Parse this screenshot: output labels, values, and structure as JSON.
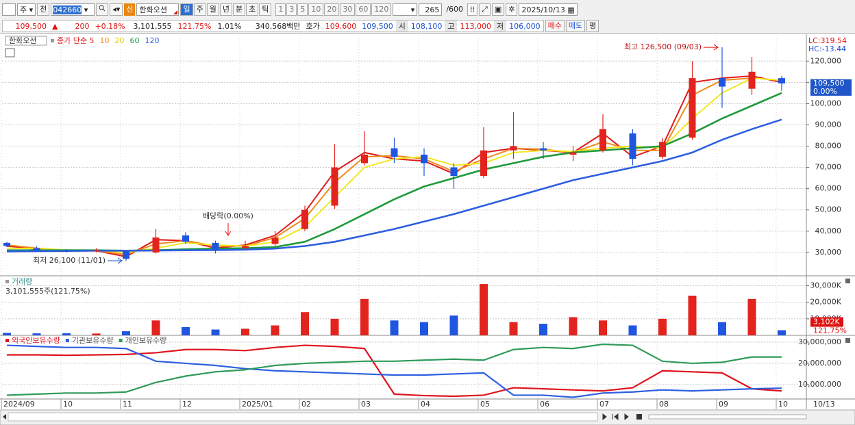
{
  "toolbar": {
    "market": "주",
    "prev": "전",
    "code": "042660",
    "badge": "신",
    "name": "한화오션",
    "periods": [
      "일",
      "주",
      "월",
      "년",
      "분",
      "초",
      "틱"
    ],
    "intervals": [
      "1",
      "3",
      "5",
      "10",
      "20",
      "30",
      "60",
      "120"
    ],
    "count": "265",
    "max": "/600",
    "date": "2025/10/13"
  },
  "quote": {
    "price": "109,500",
    "arrow": "▲",
    "change": "200",
    "change_rate": "+0.18%",
    "volume": "3,101,555",
    "volume_rate": "121.75%",
    "turnover": "1.01%",
    "amount": "340,568백만",
    "ask_label": "호가",
    "ask": "109,600",
    "bid": "109,500",
    "open_label": "시",
    "open": "108,100",
    "high_label": "고",
    "high": "113,000",
    "low_label": "저",
    "low": "106,000",
    "buy": "매수",
    "sell": "매도",
    "eval": "평"
  },
  "chart_data": [
    {
      "type": "candlestick",
      "title": "한화오션",
      "categories": [
        "2024/09",
        null,
        "10",
        null,
        "11",
        null,
        "12",
        null,
        "2025/01",
        null,
        "02",
        null,
        "03",
        null,
        "04",
        null,
        "05",
        null,
        "06",
        null,
        "07",
        null,
        "08",
        null,
        "09",
        null,
        "10"
      ],
      "open": [
        34500,
        32000,
        31000,
        30500,
        30500,
        30000,
        38000,
        34500,
        32000,
        34000,
        41000,
        52000,
        72000,
        79000,
        76000,
        70000,
        66000,
        78000,
        79000,
        76000,
        78000,
        86000,
        75000,
        84000,
        112000,
        107000,
        112000
      ],
      "high": [
        35000,
        33000,
        31500,
        32000,
        31000,
        41000,
        39500,
        35500,
        35500,
        40000,
        52000,
        81000,
        87000,
        84000,
        79000,
        72000,
        89000,
        96000,
        82000,
        80000,
        95000,
        88000,
        84000,
        120000,
        126500,
        122000,
        113000
      ],
      "low": [
        32500,
        30500,
        30000,
        30000,
        26100,
        29500,
        34000,
        29500,
        31500,
        33000,
        40000,
        50500,
        71000,
        72000,
        66000,
        60000,
        65000,
        74000,
        74000,
        73000,
        77000,
        71000,
        74000,
        83000,
        98000,
        104000,
        106000
      ],
      "close": [
        33000,
        31000,
        30500,
        31000,
        27000,
        37000,
        35000,
        31500,
        33000,
        37000,
        50000,
        70000,
        76000,
        75000,
        72000,
        66000,
        78000,
        80000,
        78000,
        77000,
        88000,
        74000,
        82000,
        112000,
        108000,
        115000,
        109500
      ],
      "up_color": "#e3231d",
      "down_color": "#1f55e0",
      "series": [
        {
          "name": "종가 단순 5",
          "color": "#e01b1b",
          "values": [
            33000,
            31500,
            30800,
            30800,
            28000,
            36000,
            35500,
            32000,
            33500,
            38000,
            49000,
            68000,
            77000,
            74000,
            73000,
            67000,
            77000,
            79000,
            78000,
            77000,
            86000,
            75000,
            80000,
            110000,
            112000,
            113000,
            110000
          ]
        },
        {
          "name": "10",
          "color": "#f08a1c",
          "values": [
            33500,
            32000,
            31000,
            30800,
            29000,
            34000,
            35500,
            33000,
            33000,
            37000,
            46000,
            63000,
            75000,
            75500,
            74000,
            68000,
            74000,
            79000,
            78500,
            77000,
            82000,
            78000,
            78000,
            104000,
            111000,
            112000,
            111000
          ]
        },
        {
          "name": "20",
          "color": "#f2e81e",
          "values": [
            32000,
            31800,
            31200,
            31000,
            30000,
            32000,
            34500,
            33500,
            33000,
            35000,
            42000,
            56000,
            70000,
            74000,
            75000,
            71000,
            72000,
            77000,
            78000,
            77500,
            79000,
            80000,
            79000,
            93000,
            105000,
            112000,
            111000
          ]
        },
        {
          "name": "60",
          "color": "#1f9a3a",
          "values": [
            31000,
            31000,
            31000,
            31000,
            30800,
            31000,
            31500,
            31800,
            32000,
            32500,
            35000,
            41000,
            48000,
            55000,
            61000,
            65000,
            69000,
            72000,
            75000,
            77000,
            78000,
            79000,
            80000,
            86000,
            93000,
            99000,
            105000
          ]
        },
        {
          "name": "120",
          "color": "#2c5ee0",
          "values": [
            30500,
            30600,
            30700,
            30800,
            30800,
            30900,
            31000,
            31100,
            31300,
            31800,
            33000,
            35000,
            38000,
            41000,
            44500,
            48000,
            52000,
            56000,
            60000,
            64000,
            67000,
            70000,
            73000,
            77000,
            83000,
            88000,
            92500
          ]
        }
      ],
      "ylim": [
        19000,
        132000
      ],
      "yticks": [
        {
          "value": 30000,
          "label": "30,000"
        },
        {
          "value": 40000,
          "label": "40,000"
        },
        {
          "value": 50000,
          "label": "50,000"
        },
        {
          "value": 60000,
          "label": "60,000"
        },
        {
          "value": 70000,
          "label": "70,000"
        },
        {
          "value": 80000,
          "label": "80,000"
        },
        {
          "value": 90000,
          "label": "90,000"
        },
        {
          "value": 100000,
          "label": "100,000"
        },
        {
          "value": 110000,
          "label": "110,000"
        },
        {
          "value": 120000,
          "label": "120,000"
        }
      ],
      "grid": true,
      "last_price": {
        "value": 109500,
        "label": "109,500"
      },
      "last_change": "0.00%",
      "indicators": [
        "LC:319.54",
        "HC:-13.44"
      ],
      "annotations": [
        {
          "text": "최고 126,500 (09/03)",
          "value": 126500
        },
        {
          "text": "최저 26,100 (11/01)",
          "value": 26100
        },
        {
          "text": "배당락(0.00%)"
        }
      ],
      "x_end_label": "10/13"
    },
    {
      "type": "bar",
      "title": "거래량",
      "subtitle": "3,101,555주(121.75%)",
      "values": [
        1500,
        1200,
        1300,
        1100,
        2500,
        9000,
        5000,
        3500,
        4000,
        6000,
        14000,
        10000,
        22000,
        9000,
        8000,
        12000,
        31000,
        8000,
        7000,
        11000,
        9000,
        6000,
        10000,
        24000,
        8000,
        22000,
        3102
      ],
      "value_labels": [
        null,
        null,
        null,
        null,
        null,
        null,
        null,
        null,
        null,
        null,
        null,
        null,
        null,
        null,
        null,
        null,
        null,
        null,
        null,
        null,
        null,
        null,
        null,
        null,
        null,
        null,
        "3,102K"
      ],
      "annotation": "121.75%",
      "ylim": [
        0,
        36000
      ],
      "yticks": [
        {
          "value": 10000,
          "label": "10,000K"
        },
        {
          "value": 20000,
          "label": "20,000K"
        },
        {
          "value": 30000,
          "label": "30,000K"
        }
      ],
      "grid": true
    },
    {
      "type": "line",
      "series": [
        {
          "name": "외국인보유수량",
          "color": "#e0141e",
          "values": [
            24000000,
            24000000,
            23800000,
            24000000,
            24200000,
            25000000,
            26500000,
            26500000,
            26000000,
            27500000,
            28500000,
            28000000,
            27000000,
            5500000,
            4800000,
            4500000,
            5000000,
            8500000,
            8000000,
            7500000,
            7000000,
            8500000,
            16500000,
            16000000,
            15500000,
            8000000,
            7000000
          ]
        },
        {
          "name": "기관보유수량",
          "color": "#2d5fe0",
          "values": [
            28500000,
            28000000,
            27500000,
            27500000,
            27000000,
            21000000,
            20000000,
            19000000,
            17500000,
            16500000,
            16000000,
            15500000,
            15000000,
            14500000,
            14500000,
            15000000,
            15500000,
            5000000,
            5000000,
            4000000,
            6000000,
            6500000,
            7500000,
            7000000,
            7500000,
            8000000,
            8300000
          ]
        },
        {
          "name": "개인보유수량",
          "color": "#2e9a5a",
          "values": [
            5000000,
            5500000,
            6000000,
            6000000,
            6500000,
            11000000,
            14000000,
            16000000,
            17000000,
            19000000,
            20000000,
            20500000,
            21000000,
            21000000,
            21500000,
            22000000,
            21500000,
            26500000,
            27500000,
            27000000,
            29000000,
            28500000,
            21000000,
            20000000,
            20500000,
            23000000,
            23000000
          ]
        }
      ],
      "ylim": [
        3200000,
        33200000
      ],
      "yticks": [
        {
          "value": 10000000,
          "label": "10,000,000"
        },
        {
          "value": 20000000,
          "label": "20,000,000"
        },
        {
          "value": 30000000,
          "label": "30,000,000"
        }
      ],
      "grid": true
    }
  ]
}
